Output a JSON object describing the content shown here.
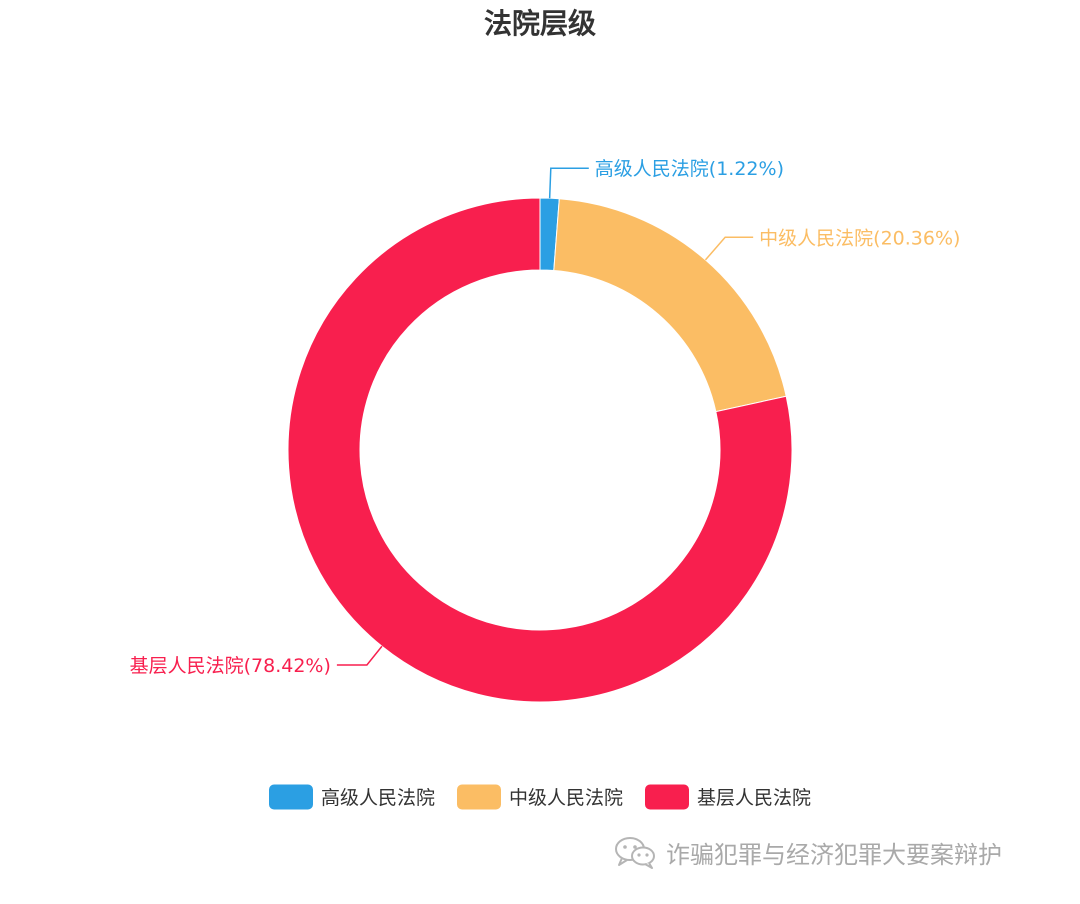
{
  "chart_data": {
    "type": "pie",
    "variant": "donut",
    "title": "法院层级",
    "categories": [
      "高级人民法院",
      "中级人民法院",
      "基层人民法院"
    ],
    "values": [
      1.22,
      20.36,
      78.42
    ],
    "unit": "%",
    "labels": [
      "高级人民法院(1.22%)",
      "中级人民法院(20.36%)",
      "基层人民法院(78.42%)"
    ],
    "colors": [
      "#2b9fe3",
      "#fbbd64",
      "#f81f4e"
    ],
    "legend": {
      "position": "bottom-center",
      "items": [
        "高级人民法院",
        "中级人民法院",
        "基层人民法院"
      ]
    }
  },
  "watermark": {
    "icon": "wechat-icon",
    "text": "诈骗犯罪与经济犯罪大要案辩护"
  }
}
